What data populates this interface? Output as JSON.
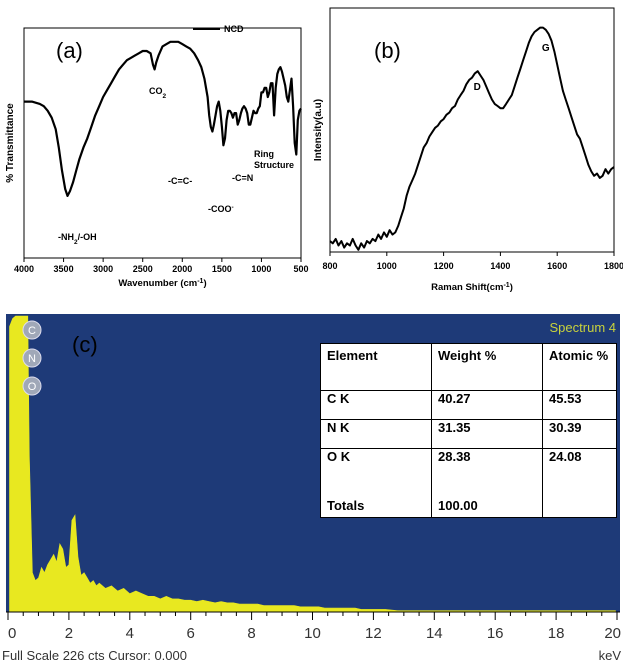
{
  "chart_data": [
    {
      "type": "line",
      "panel_label": "(a)",
      "xlabel": "Wavenumber (cm",
      "xlabel_sup": "-1",
      "ylabel": "% Transmittance",
      "xlim": [
        4000,
        500
      ],
      "x_ticks": [
        4000,
        3500,
        3000,
        2500,
        2000,
        1500,
        1000,
        500
      ],
      "legend": {
        "entries": [
          "NCD"
        ],
        "placement": "top-right"
      },
      "series": [
        {
          "name": "NCD",
          "x": [
            4000,
            3900,
            3800,
            3750,
            3700,
            3650,
            3600,
            3560,
            3520,
            3480,
            3450,
            3420,
            3380,
            3340,
            3300,
            3250,
            3200,
            3150,
            3100,
            3050,
            3000,
            2950,
            2900,
            2850,
            2800,
            2750,
            2700,
            2650,
            2600,
            2550,
            2500,
            2450,
            2400,
            2370,
            2350,
            2330,
            2300,
            2250,
            2200,
            2150,
            2100,
            2050,
            2000,
            1950,
            1900,
            1850,
            1800,
            1760,
            1720,
            1680,
            1660,
            1640,
            1620,
            1600,
            1580,
            1560,
            1540,
            1520,
            1500,
            1480,
            1460,
            1440,
            1420,
            1400,
            1380,
            1360,
            1340,
            1320,
            1300,
            1280,
            1260,
            1240,
            1220,
            1200,
            1180,
            1160,
            1140,
            1120,
            1100,
            1080,
            1060,
            1040,
            1020,
            1000,
            980,
            960,
            940,
            920,
            900,
            880,
            860,
            840,
            820,
            800,
            780,
            760,
            740,
            720,
            700,
            680,
            660,
            640,
            620,
            600,
            580,
            560,
            540,
            520,
            500
          ],
          "y": [
            68,
            68,
            67,
            66,
            64,
            61,
            56,
            48,
            38,
            30,
            27,
            29,
            33,
            38,
            43,
            48,
            52,
            57,
            62,
            66,
            70,
            73,
            76,
            79,
            82,
            84,
            86,
            87,
            88,
            89,
            90,
            90,
            89,
            84,
            82,
            85,
            88,
            92,
            93,
            94,
            94,
            94,
            93,
            92,
            91,
            89,
            86,
            83,
            78,
            70,
            62,
            57,
            55,
            58,
            62,
            66,
            68,
            64,
            57,
            49,
            52,
            60,
            64,
            64,
            63,
            61,
            63,
            63,
            58,
            60,
            63,
            65,
            66,
            65,
            63,
            58,
            58,
            61,
            64,
            63,
            63,
            65,
            66,
            72,
            72,
            74,
            74,
            70,
            72,
            76,
            76,
            62,
            74,
            80,
            82,
            83,
            81,
            78,
            75,
            70,
            68,
            73,
            78,
            66,
            50,
            45,
            60,
            64,
            65
          ]
        }
      ],
      "annotations": [
        {
          "text": "CO",
          "sub": "2",
          "x": 2350,
          "y": 82
        },
        {
          "text": "-NH",
          "sub": "2",
          "tail": "/-OH",
          "x": 3450,
          "y": 27
        },
        {
          "text": "-C=C-",
          "x": 1640,
          "y": 57
        },
        {
          "text": "-COO",
          "sup": "-",
          "x": 1480,
          "y": 49
        },
        {
          "text": "-C=N",
          "x": 1300,
          "y": 58
        },
        {
          "text": "Ring",
          "x": 1000,
          "y": 72
        },
        {
          "text": "Structure",
          "x": 900,
          "y": 70
        }
      ]
    },
    {
      "type": "line",
      "panel_label": "(b)",
      "xlabel": "Raman Shift(cm",
      "xlabel_sup": "-1",
      "xlabel_tail": ")",
      "ylabel": "Intensity(a.u)",
      "xlim": [
        800,
        1800
      ],
      "x_ticks": [
        800,
        1000,
        1200,
        1400,
        1600,
        1800
      ],
      "series": [
        {
          "x": [
            800,
            810,
            820,
            830,
            840,
            850,
            860,
            870,
            880,
            890,
            900,
            910,
            920,
            930,
            940,
            950,
            960,
            970,
            980,
            990,
            1000,
            1010,
            1020,
            1030,
            1040,
            1050,
            1060,
            1070,
            1080,
            1090,
            1100,
            1110,
            1120,
            1130,
            1140,
            1150,
            1160,
            1170,
            1180,
            1190,
            1200,
            1210,
            1220,
            1230,
            1240,
            1250,
            1260,
            1270,
            1280,
            1290,
            1300,
            1310,
            1320,
            1330,
            1340,
            1350,
            1360,
            1370,
            1380,
            1390,
            1400,
            1410,
            1420,
            1430,
            1440,
            1450,
            1460,
            1470,
            1480,
            1490,
            1500,
            1510,
            1520,
            1530,
            1540,
            1550,
            1560,
            1570,
            1580,
            1590,
            1600,
            1610,
            1620,
            1630,
            1640,
            1650,
            1660,
            1670,
            1680,
            1690,
            1700,
            1710,
            1720,
            1730,
            1740,
            1750,
            1760,
            1770,
            1780,
            1790,
            1800
          ],
          "y": [
            5,
            4,
            6,
            3,
            5,
            2,
            4,
            3,
            6,
            3,
            1,
            4,
            2,
            5,
            4,
            6,
            5,
            8,
            6,
            9,
            7,
            10,
            8,
            9,
            12,
            16,
            20,
            26,
            30,
            33,
            36,
            40,
            44,
            48,
            50,
            53,
            55,
            57,
            58,
            60,
            61,
            63,
            64,
            66,
            67,
            70,
            72,
            74,
            77,
            79,
            80,
            82,
            83,
            81,
            79,
            76,
            73,
            70,
            68,
            67,
            66,
            66,
            68,
            70,
            72,
            76,
            80,
            84,
            88,
            92,
            96,
            99,
            101,
            102,
            103,
            103,
            102,
            100,
            97,
            92,
            86,
            80,
            74,
            70,
            66,
            62,
            58,
            54,
            52,
            48,
            44,
            40,
            37,
            35,
            36,
            34,
            35,
            38,
            36,
            38,
            39
          ]
        }
      ],
      "annotations": [
        {
          "text": "D",
          "x": 1320,
          "y": 84
        },
        {
          "text": "G",
          "x": 1560,
          "y": 105
        }
      ]
    },
    {
      "type": "bar",
      "panel_label": "(c)",
      "spectrum_label": "Spectrum 4",
      "footer_left": "Full Scale 226 cts Cursor: 0.000",
      "footer_right": "keV",
      "xlim": [
        0,
        20
      ],
      "x_ticks": [
        "0",
        "2",
        "4",
        "6",
        "8",
        "10",
        "12",
        "14",
        "16",
        "18",
        "20"
      ],
      "element_markers": [
        "C",
        "N",
        "O"
      ],
      "ylim": [
        0,
        226
      ],
      "x": [
        0.05,
        0.15,
        0.25,
        0.3,
        0.35,
        0.4,
        0.45,
        0.5,
        0.55,
        0.6,
        0.65,
        0.7,
        0.8,
        0.9,
        1.0,
        1.1,
        1.2,
        1.3,
        1.4,
        1.5,
        1.6,
        1.7,
        1.8,
        1.9,
        2.0,
        2.1,
        2.2,
        2.3,
        2.4,
        2.5,
        2.6,
        2.7,
        2.8,
        2.9,
        3.0,
        3.2,
        3.4,
        3.6,
        3.8,
        4.0,
        4.2,
        4.4,
        4.6,
        4.8,
        5.0,
        5.2,
        5.4,
        5.6,
        5.8,
        6.0,
        6.2,
        6.4,
        6.6,
        6.8,
        7.0,
        7.2,
        7.4,
        7.6,
        7.8,
        8.0,
        8.2,
        8.4,
        8.6,
        8.8,
        9.0,
        9.2,
        9.4,
        9.6,
        9.8,
        10.0,
        10.2,
        10.4,
        10.6,
        10.8,
        11.0,
        11.2,
        11.4,
        11.6,
        11.8,
        12.0,
        12.4,
        12.8,
        13.2,
        13.6,
        14.0,
        14.5,
        15.0,
        15.5,
        16.0,
        16.5,
        17.0,
        17.5,
        18.0,
        18.5,
        19.0,
        19.5,
        19.95
      ],
      "values": [
        218,
        224,
        226,
        226,
        226,
        226,
        226,
        226,
        226,
        226,
        226,
        120,
        30,
        24,
        26,
        34,
        30,
        36,
        40,
        44,
        38,
        52,
        48,
        34,
        36,
        70,
        74,
        42,
        28,
        30,
        26,
        22,
        24,
        20,
        22,
        18,
        20,
        16,
        18,
        14,
        16,
        14,
        12,
        12,
        10,
        12,
        10,
        10,
        9,
        9,
        8,
        9,
        8,
        7,
        8,
        7,
        7,
        6,
        6,
        6,
        6,
        5,
        5,
        5,
        5,
        5,
        5,
        4,
        4,
        4,
        4,
        3,
        3,
        3,
        3,
        3,
        3,
        2,
        2,
        2,
        2,
        1,
        1,
        1,
        1,
        1,
        1,
        1,
        1,
        1,
        1,
        1,
        1,
        1,
        1,
        1,
        1
      ]
    }
  ],
  "table": {
    "headers": [
      "Element",
      "Weight %",
      "Atomic %"
    ],
    "rows": [
      {
        "element": "C K",
        "weight": "40.27",
        "atomic": "45.53"
      },
      {
        "element": "N K",
        "weight": "31.35",
        "atomic": "30.39"
      },
      {
        "element": "O K",
        "weight": "28.38",
        "atomic": "24.08"
      }
    ],
    "totals_label": "Totals",
    "totals_weight": "100.00"
  },
  "colors": {
    "eds_background": "#1e3a78",
    "eds_trace": "#e8e820",
    "spectrum_label": "#c8d23c",
    "line": "#000000"
  }
}
